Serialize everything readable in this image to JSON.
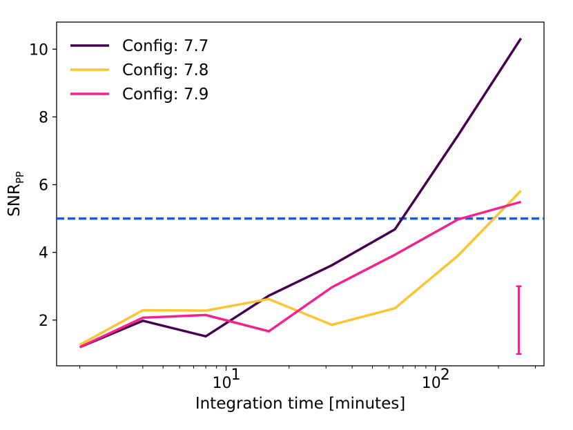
{
  "chart_data": {
    "type": "line",
    "xscale": "log",
    "xlabel": "Integration time [minutes]",
    "ylabel": {
      "main": "SNR",
      "subscript": "PP"
    },
    "xlim": [
      1.55,
      330
    ],
    "ylim": [
      0.65,
      10.8
    ],
    "x": [
      2,
      4,
      8,
      16,
      32,
      64,
      128,
      256
    ],
    "series": [
      {
        "name": "Config: 7.7",
        "color": "#45004f",
        "values": [
          1.2,
          1.98,
          1.52,
          2.72,
          3.62,
          4.68,
          7.45,
          10.32
        ]
      },
      {
        "name": "Config: 7.8",
        "color": "#fbc531",
        "values": [
          1.27,
          2.29,
          2.28,
          2.62,
          1.86,
          2.35,
          3.9,
          5.82
        ]
      },
      {
        "name": "Config: 7.9",
        "color": "#f5208e",
        "values": [
          1.2,
          2.07,
          2.15,
          1.67,
          2.97,
          3.93,
          4.97,
          5.49
        ]
      }
    ],
    "threshold": {
      "y": 5.0,
      "color": "#0d5ef0",
      "style": "dashed"
    },
    "errorbar": {
      "x": 256,
      "low": 1.0,
      "high": 3.0,
      "color": "#f5208e"
    },
    "yticks": [
      2,
      4,
      6,
      8,
      10
    ],
    "xticks_major": [
      {
        "value": 10,
        "base": "10",
        "exp": "1"
      },
      {
        "value": 100,
        "base": "10",
        "exp": "2"
      }
    ],
    "legend": {
      "position": "top-left"
    }
  }
}
